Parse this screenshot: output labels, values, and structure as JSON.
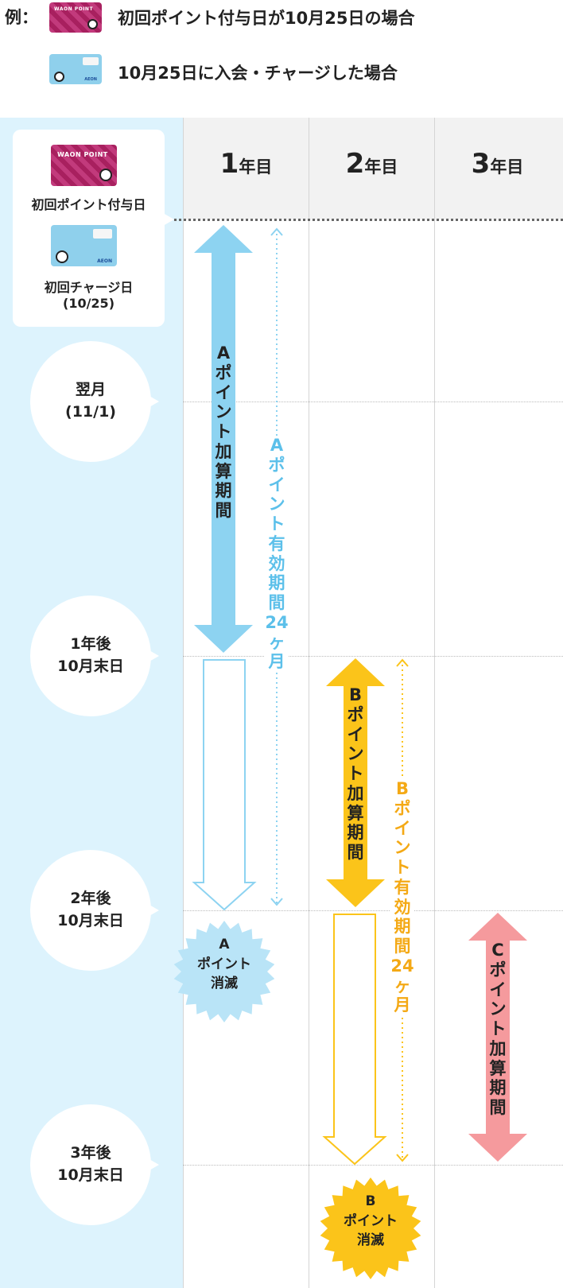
{
  "legend": {
    "prefix": "例：",
    "waon_card_label": "WAON POINT",
    "waon_text": "初回ポイント付与日が10月25日の場合",
    "aeon_card_label": "AEON",
    "aeon_text": "10月25日に入会・チャージした場合"
  },
  "columns": [
    {
      "num": "1",
      "unit": "年目"
    },
    {
      "num": "2",
      "unit": "年目"
    },
    {
      "num": "3",
      "unit": "年目"
    }
  ],
  "start": {
    "waon_card_label": "WAON POINT",
    "waon_label": "初回ポイント付与日",
    "aeon_card_label": "AEON",
    "aeon_label_1": "初回チャージ日",
    "aeon_label_2": "(10/25)"
  },
  "milestones": [
    {
      "line1": "翌月",
      "line2": "(11/1)"
    },
    {
      "line1": "1年後",
      "line2": "10月末日"
    },
    {
      "line1": "2年後",
      "line2": "10月末日"
    },
    {
      "line1": "3年後",
      "line2": "10月末日"
    }
  ],
  "periods": {
    "a_add": "Aポイント加算期間",
    "a_valid": "Aポイント有効期間24ヶ月",
    "b_add": "Bポイント加算期間",
    "b_valid": "Bポイント有効期間24ヶ月",
    "c_add": "Cポイント加算期間"
  },
  "expiry": {
    "a_line1": "A",
    "a_line2": "ポイント",
    "a_line3": "消滅",
    "b_line1": "B",
    "b_line2": "ポイント",
    "b_line3": "消滅"
  },
  "colors": {
    "a_blue": "#8dd3f1",
    "a_text": "#5cc0ea",
    "b_yellow": "#fbc41a",
    "b_text": "#f4a915",
    "c_pink": "#f59a9d",
    "bg_light_blue": "#ddf3fd"
  }
}
